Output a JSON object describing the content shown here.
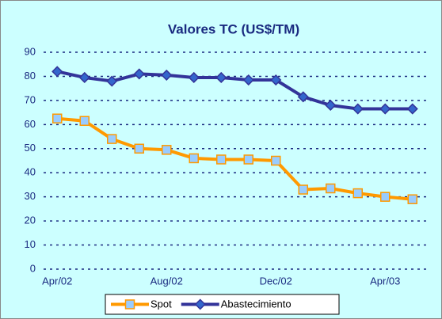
{
  "chart_data": {
    "type": "line",
    "title": "Valores TC (US$/TM)",
    "categories": [
      "Apr/02",
      null,
      null,
      null,
      "Aug/02",
      null,
      null,
      null,
      "Dec/02",
      null,
      null,
      null,
      "Apr/03",
      null
    ],
    "series": [
      {
        "name": "Spot",
        "color": "#ff9900",
        "marker": "square",
        "marker_color": "#99ccff",
        "values": [
          62.5,
          61.5,
          54,
          50,
          49.5,
          46,
          45.5,
          45.5,
          45,
          33,
          33.5,
          31.5,
          30,
          29
        ]
      },
      {
        "name": "Abastecimiento",
        "color": "#333399",
        "marker": "diamond",
        "marker_color": "#3366cc",
        "values": [
          82,
          79.5,
          78,
          81,
          80.5,
          79.5,
          79.5,
          78.5,
          78.5,
          71.5,
          68,
          66.5,
          66.5,
          66.5
        ]
      }
    ],
    "ylim": [
      0,
      90
    ],
    "yticks": [
      0,
      10,
      20,
      30,
      40,
      50,
      60,
      70,
      80,
      90
    ],
    "grid": true,
    "legend": "bottom"
  }
}
